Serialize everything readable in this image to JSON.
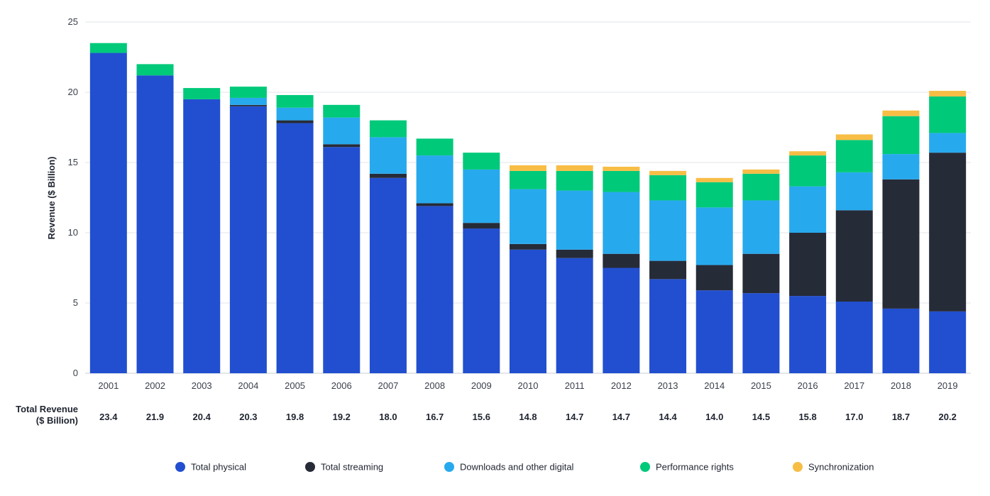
{
  "chart_data": {
    "type": "bar",
    "stacked": true,
    "title": "",
    "xlabel": "",
    "ylabel": "Revenue ($ Billion)",
    "ylim": [
      0,
      25
    ],
    "yticks": [
      "0",
      "5",
      "10",
      "15",
      "20",
      "25"
    ],
    "grid": true,
    "categories": [
      "2001",
      "2002",
      "2003",
      "2004",
      "2005",
      "2006",
      "2007",
      "2008",
      "2009",
      "2010",
      "2011",
      "2012",
      "2013",
      "2014",
      "2015",
      "2016",
      "2017",
      "2018",
      "2019"
    ],
    "series": [
      {
        "name": "Total physical",
        "color": "#214fcf",
        "values": [
          22.8,
          21.2,
          19.5,
          19.0,
          17.8,
          16.1,
          13.9,
          11.9,
          10.3,
          8.8,
          8.2,
          7.5,
          6.7,
          5.9,
          5.7,
          5.5,
          5.1,
          4.6,
          4.4
        ]
      },
      {
        "name": "Total streaming",
        "color": "#262b38",
        "values": [
          0.0,
          0.0,
          0.0,
          0.1,
          0.2,
          0.2,
          0.3,
          0.2,
          0.4,
          0.4,
          0.6,
          1.0,
          1.3,
          1.8,
          2.8,
          4.5,
          6.5,
          9.2,
          11.3
        ]
      },
      {
        "name": "Downloads and other digital",
        "color": "#27a9ee",
        "values": [
          0.0,
          0.0,
          0.0,
          0.5,
          0.9,
          1.9,
          2.6,
          3.4,
          3.8,
          3.9,
          4.2,
          4.4,
          4.3,
          4.1,
          3.8,
          3.3,
          2.7,
          1.8,
          1.4
        ]
      },
      {
        "name": "Performance rights",
        "color": "#00c97a",
        "values": [
          0.7,
          0.8,
          0.8,
          0.8,
          0.9,
          0.9,
          1.2,
          1.2,
          1.2,
          1.3,
          1.4,
          1.5,
          1.8,
          1.8,
          1.9,
          2.2,
          2.3,
          2.7,
          2.6
        ]
      },
      {
        "name": "Synchronization",
        "color": "#f7bd45",
        "values": [
          0.0,
          0.0,
          0.0,
          0.0,
          0.0,
          0.0,
          0.0,
          0.0,
          0.0,
          0.4,
          0.4,
          0.3,
          0.3,
          0.3,
          0.3,
          0.3,
          0.4,
          0.4,
          0.4
        ]
      }
    ],
    "totals_label": [
      "Total Revenue",
      "($ Billion)"
    ],
    "totals": [
      "23.4",
      "21.9",
      "20.4",
      "20.3",
      "19.8",
      "19.2",
      "18.0",
      "16.7",
      "15.6",
      "14.8",
      "14.7",
      "14.7",
      "14.4",
      "14.0",
      "14.5",
      "15.8",
      "17.0",
      "18.7",
      "20.2"
    ],
    "legend_position": "bottom-center"
  }
}
